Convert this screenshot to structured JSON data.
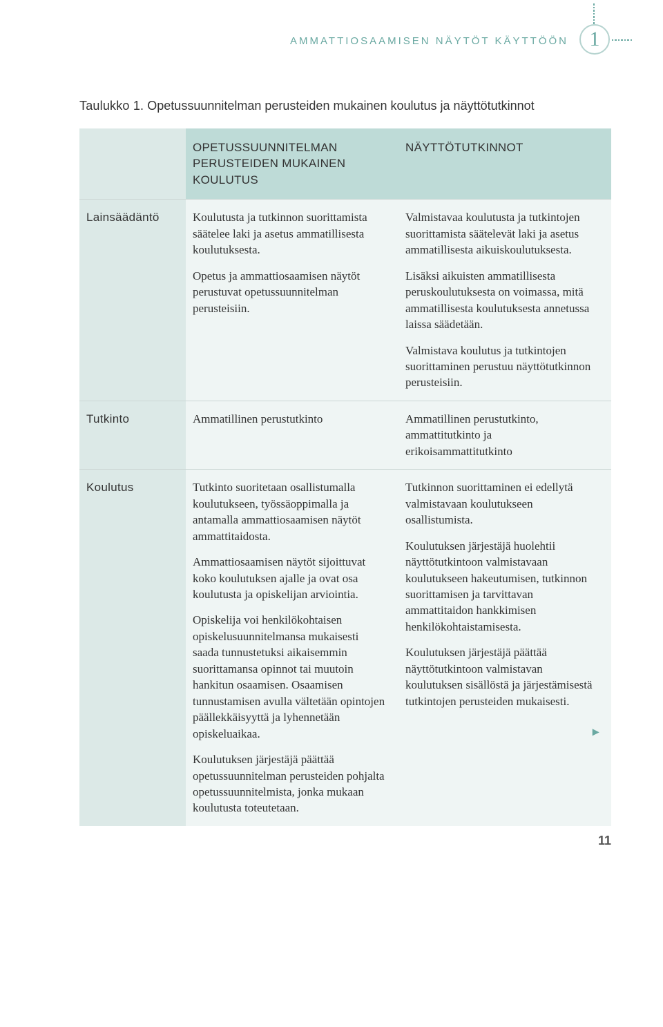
{
  "colors": {
    "accent": "#6aa9a2",
    "accentLight": "#b5d3cf",
    "headerBg": "#bedbd7",
    "rowLabelBg": "#dce9e7",
    "bodyBg": "#eff5f4"
  },
  "header": {
    "runningTitle": "AMMATTIOSAAMISEN NÄYTÖT KÄYTTÖÖN",
    "chapterNumber": "1"
  },
  "caption": {
    "label": "Taulukko 1.",
    "text": "Opetussuunnitelman perusteiden mukainen koulutus ja näyttötutkinnot"
  },
  "table": {
    "columns": [
      "",
      "OPETUSSUUNNITELMAN PERUSTEIDEN MUKAINEN KOULUTUS",
      "NÄYTTÖTUTKINNOT"
    ],
    "rows": [
      {
        "label": "Lainsäädäntö",
        "col1": [
          "Koulutusta ja tutkinnon suorittamista säätelee laki ja asetus ammatillisesta koulutuksesta.",
          "Opetus ja ammattiosaamisen näytöt perustuvat opetussuunnitelman perusteisiin."
        ],
        "col2": [
          "Valmistavaa koulutusta ja tutkintojen suorittamista säätelevät laki ja asetus ammatillisesta aikuiskoulutuksesta.",
          "Lisäksi aikuisten ammatillisesta peruskoulutuksesta on voimassa, mitä ammatillisesta koulutuksesta annetussa laissa säädetään.",
          "Valmistava koulutus ja tutkintojen suorittaminen perustuu näyttötutkinnon perusteisiin."
        ]
      },
      {
        "label": "Tutkinto",
        "col1": [
          "Ammatillinen perustutkinto"
        ],
        "col2": [
          "Ammatillinen perustutkinto, ammattitutkinto ja erikoisammattitutkinto"
        ]
      },
      {
        "label": "Koulutus",
        "col1": [
          "Tutkinto suoritetaan osallistumalla koulutukseen, työssäoppimalla ja antamalla ammattiosaamisen näytöt ammattitaidosta.",
          "Ammattiosaamisen näytöt sijoittuvat koko koulutuksen ajalle ja ovat osa koulutusta ja opiskelijan arviointia.",
          "Opiskelija voi henkilökohtaisen opiskelusuunnitelmansa mukaisesti saada tunnustetuksi aikaisemmin suorittamansa opinnot tai muutoin hankitun osaamisen. Osaamisen tunnustamisen avulla vältetään opintojen päällekkäisyyttä ja lyhennetään opiskeluaikaa.",
          "Koulutuksen järjestäjä päättää opetussuunnitelman perusteiden pohjalta opetussuunnitelmista, jonka mukaan koulutusta toteutetaan."
        ],
        "col2": [
          "Tutkinnon suorittaminen ei edellytä valmistavaan koulutukseen osallistumista.",
          "Koulutuksen järjestäjä huolehtii näyttötutkintoon valmistavaan koulutukseen hakeutumisen, tutkinnon suorittamisen ja tarvittavan ammattitaidon hankkimisen henkilökohtaistamisesta.",
          "Koulutuksen järjestäjä päättää näyttötutkintoon valmistavan koulutuksen sisällöstä ja järjestämisestä tutkintojen perusteiden mukaisesti."
        ],
        "hasArrow": true
      }
    ]
  },
  "pageNumber": "11"
}
